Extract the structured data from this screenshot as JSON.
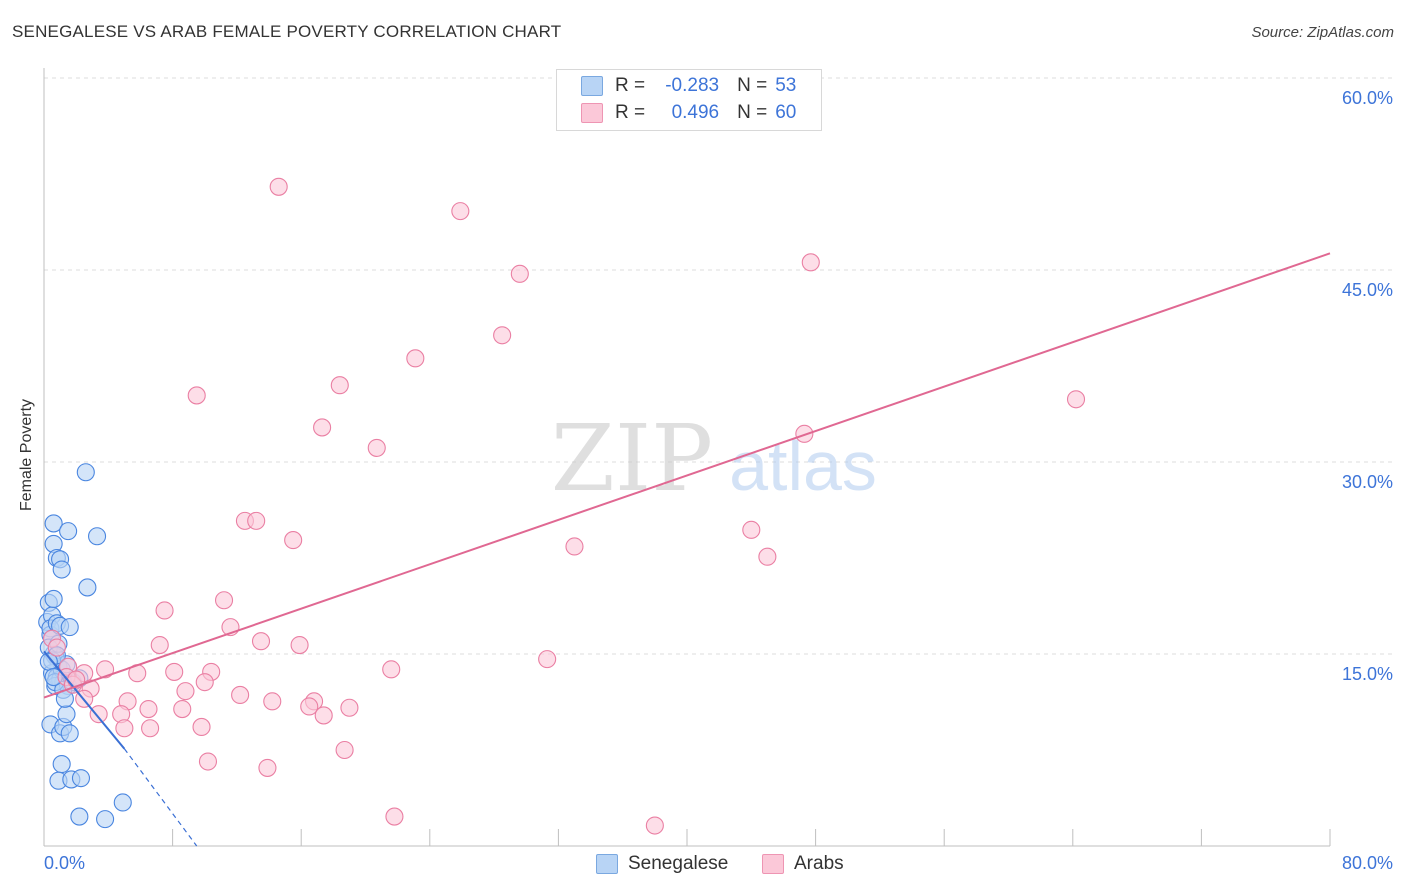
{
  "title": "SENEGALESE VS ARAB FEMALE POVERTY CORRELATION CHART",
  "source": "Source: ZipAtlas.com",
  "colors": {
    "blue": "#4a86e0",
    "blue_fill": "#b8d4f5",
    "blue_line": "#3a6fd4",
    "pink": "#ea7fa3",
    "pink_fill": "#fbc8d8",
    "pink_line": "#e06892",
    "tick_label": "#3d74d8",
    "grid": "#dcdcdc"
  },
  "legend": {
    "rows": [
      {
        "r_label": "R =",
        "r_value": "-0.283",
        "n_label": "N =",
        "n_value": "53"
      },
      {
        "r_label": "R =",
        "r_value": "0.496",
        "n_label": "N =",
        "n_value": "60"
      }
    ]
  },
  "bottom_legend": [
    "Senegalese",
    "Arabs"
  ],
  "watermark": {
    "zip": "ZIP",
    "atlas": "atlas"
  },
  "chart_data": {
    "type": "scatter",
    "title": "SENEGALESE VS ARAB FEMALE POVERTY CORRELATION CHART",
    "xlabel": "",
    "ylabel": "Female Poverty",
    "xlim": [
      0,
      80
    ],
    "ylim": [
      0,
      60
    ],
    "x_tick_labels": [
      "0.0%",
      "80.0%"
    ],
    "y_ticks": [
      15,
      30,
      45,
      60
    ],
    "y_tick_labels": [
      "15.0%",
      "30.0%",
      "45.0%",
      "60.0%"
    ],
    "grid": true,
    "series": [
      {
        "name": "Senegalese",
        "R": -0.283,
        "N": 53,
        "points": [
          [
            0.2,
            17.5
          ],
          [
            0.3,
            19
          ],
          [
            0.4,
            16.5
          ],
          [
            0.5,
            18
          ],
          [
            0.4,
            17
          ],
          [
            0.6,
            19.3
          ],
          [
            0.8,
            17.4
          ],
          [
            0.5,
            16.2
          ],
          [
            0.6,
            15
          ],
          [
            0.7,
            14.8
          ],
          [
            0.9,
            14
          ],
          [
            0.5,
            13.5
          ],
          [
            0.8,
            13.2
          ],
          [
            1.0,
            13
          ],
          [
            1.2,
            12.8
          ],
          [
            0.7,
            12.5
          ],
          [
            1.5,
            12.5
          ],
          [
            1.1,
            13.8
          ],
          [
            1.4,
            14.2
          ],
          [
            1.8,
            12.8
          ],
          [
            0.3,
            15.5
          ],
          [
            0.5,
            14.5
          ],
          [
            0.9,
            15.8
          ],
          [
            1.0,
            17.2
          ],
          [
            1.6,
            17.1
          ],
          [
            0.6,
            25.2
          ],
          [
            0.6,
            23.6
          ],
          [
            0.8,
            22.5
          ],
          [
            1.0,
            22.4
          ],
          [
            1.1,
            21.6
          ],
          [
            1.5,
            24.6
          ],
          [
            2.6,
            29.2
          ],
          [
            3.3,
            24.2
          ],
          [
            2.7,
            20.2
          ],
          [
            0.4,
            9.5
          ],
          [
            1.0,
            8.8
          ],
          [
            1.2,
            9.3
          ],
          [
            1.4,
            10.3
          ],
          [
            1.6,
            8.8
          ],
          [
            1.1,
            6.4
          ],
          [
            0.9,
            5.1
          ],
          [
            1.7,
            5.2
          ],
          [
            2.3,
            5.3
          ],
          [
            2.2,
            2.3
          ],
          [
            3.8,
            2.1
          ],
          [
            4.9,
            3.4
          ],
          [
            0.7,
            12.8
          ],
          [
            1.2,
            12.2
          ],
          [
            1.3,
            11.5
          ],
          [
            2.2,
            13.1
          ],
          [
            0.8,
            14.9
          ],
          [
            0.3,
            14.4
          ],
          [
            0.6,
            13.2
          ]
        ]
      },
      {
        "name": "Arabs",
        "R": 0.496,
        "N": 60,
        "points": [
          [
            14.6,
            51.5
          ],
          [
            25.9,
            49.6
          ],
          [
            29.6,
            44.7
          ],
          [
            47.7,
            45.6
          ],
          [
            28.5,
            39.9
          ],
          [
            23.1,
            38.1
          ],
          [
            18.4,
            36
          ],
          [
            9.5,
            35.2
          ],
          [
            64.2,
            34.9
          ],
          [
            17.3,
            32.7
          ],
          [
            20.7,
            31.1
          ],
          [
            47.3,
            32.2
          ],
          [
            12.5,
            25.4
          ],
          [
            13.2,
            25.4
          ],
          [
            15.5,
            23.9
          ],
          [
            33.0,
            23.4
          ],
          [
            44.0,
            24.7
          ],
          [
            45.0,
            22.6
          ],
          [
            11.2,
            19.2
          ],
          [
            7.5,
            18.4
          ],
          [
            11.6,
            17.1
          ],
          [
            13.5,
            16
          ],
          [
            15.9,
            15.7
          ],
          [
            7.2,
            15.7
          ],
          [
            0.5,
            16.2
          ],
          [
            0.8,
            15.5
          ],
          [
            1.5,
            14
          ],
          [
            2.5,
            13.5
          ],
          [
            3.8,
            13.8
          ],
          [
            5.8,
            13.5
          ],
          [
            8.1,
            13.6
          ],
          [
            10.4,
            13.6
          ],
          [
            21.6,
            13.8
          ],
          [
            31.3,
            14.6
          ],
          [
            1.4,
            13.2
          ],
          [
            1.8,
            12.6
          ],
          [
            2.9,
            12.3
          ],
          [
            10.0,
            12.8
          ],
          [
            8.8,
            12.1
          ],
          [
            12.2,
            11.8
          ],
          [
            14.2,
            11.3
          ],
          [
            16.8,
            11.3
          ],
          [
            5.2,
            11.3
          ],
          [
            3.4,
            10.3
          ],
          [
            6.5,
            10.7
          ],
          [
            8.6,
            10.7
          ],
          [
            16.5,
            10.9
          ],
          [
            4.8,
            10.3
          ],
          [
            17.4,
            10.2
          ],
          [
            19.0,
            10.8
          ],
          [
            5.0,
            9.2
          ],
          [
            6.6,
            9.2
          ],
          [
            9.8,
            9.3
          ],
          [
            2.5,
            11.5
          ],
          [
            18.7,
            7.5
          ],
          [
            10.2,
            6.6
          ],
          [
            13.9,
            6.1
          ],
          [
            21.8,
            2.3
          ],
          [
            38.0,
            1.6
          ],
          [
            2.0,
            13.0
          ]
        ]
      }
    ],
    "trend_lines": [
      {
        "series": "Senegalese",
        "solid": [
          [
            0,
            15.2
          ],
          [
            5,
            7.6
          ]
        ],
        "dashed": [
          [
            5,
            7.6
          ],
          [
            9.5,
            0.0
          ]
        ]
      },
      {
        "series": "Arabs",
        "solid": [
          [
            0,
            11.6
          ],
          [
            80,
            46.3
          ]
        ]
      }
    ]
  }
}
